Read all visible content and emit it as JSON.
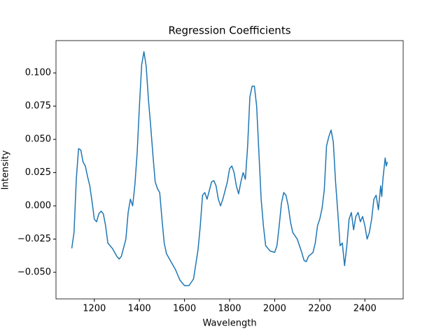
{
  "chart_data": {
    "type": "line",
    "title": "Regression Coefficients",
    "xlabel": "Wavelength",
    "ylabel": "Intensity",
    "xlim": [
      1030,
      2570
    ],
    "ylim": [
      -0.07,
      0.1243
    ],
    "xticks": [
      1200,
      1400,
      1600,
      1800,
      2000,
      2200,
      2400
    ],
    "yticks": [
      {
        "value": -0.05,
        "label": "−0.050"
      },
      {
        "value": -0.025,
        "label": "−0.025"
      },
      {
        "value": 0,
        "label": "0.000"
      },
      {
        "value": 0.025,
        "label": "0.025"
      },
      {
        "value": 0.05,
        "label": "0.050"
      },
      {
        "value": 0.075,
        "label": "0.075"
      },
      {
        "value": 0.1,
        "label": "0.100"
      }
    ],
    "grid": false,
    "x": [
      1100,
      1110,
      1120,
      1130,
      1140,
      1150,
      1160,
      1170,
      1180,
      1190,
      1200,
      1210,
      1220,
      1230,
      1240,
      1250,
      1260,
      1280,
      1300,
      1310,
      1320,
      1340,
      1350,
      1360,
      1370,
      1380,
      1390,
      1400,
      1410,
      1420,
      1430,
      1440,
      1450,
      1460,
      1470,
      1480,
      1490,
      1500,
      1510,
      1520,
      1540,
      1560,
      1580,
      1600,
      1620,
      1640,
      1660,
      1670,
      1680,
      1690,
      1700,
      1720,
      1730,
      1740,
      1750,
      1760,
      1770,
      1790,
      1800,
      1810,
      1820,
      1830,
      1840,
      1850,
      1860,
      1870,
      1880,
      1890,
      1900,
      1910,
      1920,
      1930,
      1940,
      1950,
      1960,
      1980,
      2000,
      2010,
      2020,
      2030,
      2040,
      2050,
      2060,
      2070,
      2080,
      2100,
      2120,
      2130,
      2140,
      2150,
      2170,
      2180,
      2190,
      2200,
      2210,
      2220,
      2230,
      2240,
      2250,
      2260,
      2270,
      2280,
      2290,
      2300,
      2310,
      2320,
      2330,
      2340,
      2350,
      2360,
      2370,
      2380,
      2390,
      2400,
      2410,
      2420,
      2430,
      2440,
      2450,
      2460,
      2470,
      2475,
      2480,
      2490,
      2495,
      2500
    ],
    "series": [
      {
        "color": "#1f77b4",
        "values": [
          -0.032,
          -0.02,
          0.02,
          0.043,
          0.042,
          0.033,
          0.03,
          0.022,
          0.015,
          0.003,
          -0.01,
          -0.012,
          -0.006,
          -0.004,
          -0.006,
          -0.015,
          -0.028,
          -0.032,
          -0.038,
          -0.04,
          -0.038,
          -0.025,
          -0.005,
          0.005,
          0.0,
          0.016,
          0.04,
          0.075,
          0.106,
          0.116,
          0.105,
          0.08,
          0.06,
          0.038,
          0.018,
          0.013,
          0.01,
          -0.01,
          -0.028,
          -0.036,
          -0.042,
          -0.048,
          -0.056,
          -0.06,
          -0.06,
          -0.055,
          -0.033,
          -0.015,
          0.008,
          0.01,
          0.005,
          0.018,
          0.019,
          0.015,
          0.005,
          0.0,
          0.005,
          0.018,
          0.028,
          0.03,
          0.025,
          0.015,
          0.009,
          0.018,
          0.025,
          0.02,
          0.045,
          0.082,
          0.09,
          0.09,
          0.075,
          0.04,
          0.005,
          -0.015,
          -0.03,
          -0.034,
          -0.035,
          -0.03,
          -0.015,
          0.002,
          0.01,
          0.008,
          0.0,
          -0.012,
          -0.02,
          -0.025,
          -0.035,
          -0.041,
          -0.042,
          -0.038,
          -0.035,
          -0.028,
          -0.015,
          -0.01,
          -0.002,
          0.012,
          0.045,
          0.052,
          0.057,
          0.048,
          0.018,
          -0.005,
          -0.03,
          -0.028,
          -0.045,
          -0.03,
          -0.01,
          -0.005,
          -0.018,
          -0.008,
          -0.005,
          -0.012,
          -0.008,
          -0.015,
          -0.025,
          -0.02,
          -0.01,
          0.005,
          0.008,
          -0.003,
          0.015,
          0.007,
          0.02,
          0.036,
          0.03,
          0.033
        ]
      }
    ]
  }
}
